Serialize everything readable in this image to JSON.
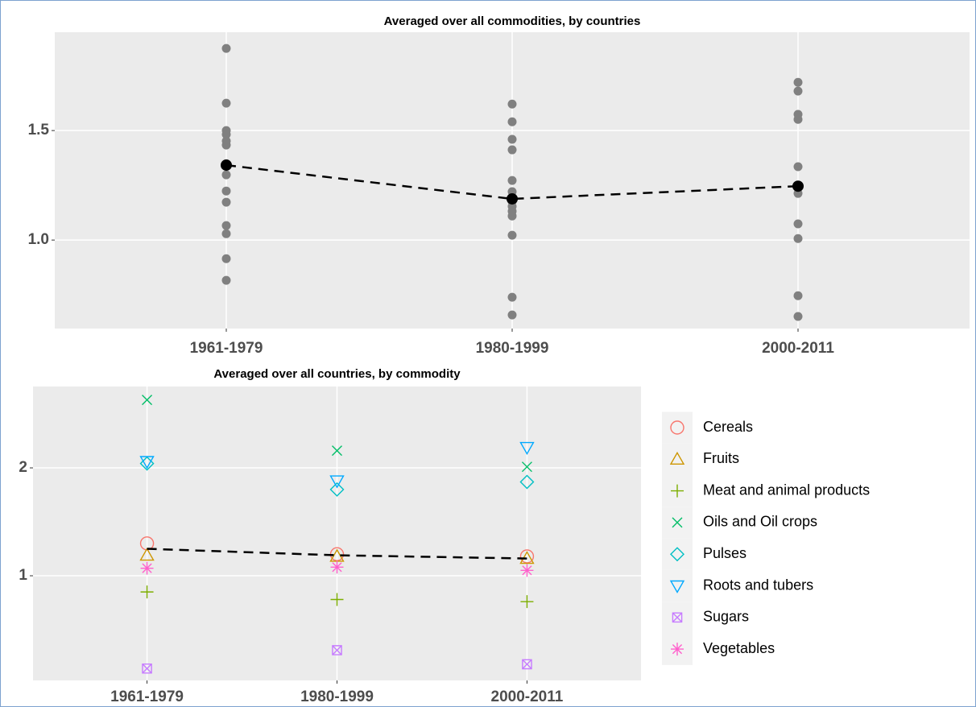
{
  "chart_data": [
    {
      "type": "strip",
      "title": "Averaged over all commodities, by countries",
      "categories": [
        "1961-1979",
        "1980-1999",
        "2000-2011"
      ],
      "values": [
        [
          1.875,
          1.625,
          1.5,
          1.482,
          1.452,
          1.434,
          1.349,
          1.298,
          1.224,
          1.173,
          1.066,
          1.029,
          0.915,
          0.816
        ],
        [
          1.621,
          1.54,
          1.46,
          1.412,
          1.272,
          1.221,
          1.176,
          1.154,
          1.132,
          1.11,
          1.022,
          0.739,
          0.658
        ],
        [
          1.72,
          1.68,
          1.574,
          1.551,
          1.335,
          1.25,
          1.213,
          1.074,
          1.007,
          0.746,
          0.651
        ]
      ],
      "color": "#808080",
      "mean_values": [
        1.342,
        1.188,
        1.246
      ],
      "mean_color": "#000000",
      "ylim": [
        0.596,
        1.949
      ],
      "yticks": [
        {
          "value": 1,
          "label": "1.0"
        },
        {
          "value": 1.5,
          "label": "1.5"
        }
      ],
      "grid": true
    },
    {
      "type": "point",
      "title": "Averaged over all countries, by commodity",
      "categories": [
        "1961-1979",
        "1980-1999",
        "2000-2011"
      ],
      "series": [
        {
          "name": "Cereals",
          "color": "#F8766D",
          "shape": "circle",
          "values": [
            1.3,
            1.2,
            1.18
          ]
        },
        {
          "name": "Fruits",
          "color": "#CD9600",
          "shape": "triangle",
          "values": [
            1.19,
            1.18,
            1.16
          ]
        },
        {
          "name": "Meat and animal products",
          "color": "#7CAE00",
          "shape": "plus",
          "values": [
            0.85,
            0.78,
            0.76
          ]
        },
        {
          "name": "Oils and Oil crops",
          "color": "#00BE67",
          "shape": "cross",
          "values": [
            2.63,
            2.16,
            2.01
          ]
        },
        {
          "name": "Pulses",
          "color": "#00BFC4",
          "shape": "diamond",
          "values": [
            2.04,
            1.8,
            1.87
          ]
        },
        {
          "name": "Roots and tubers",
          "color": "#00A9FF",
          "shape": "triangle-down",
          "values": [
            2.06,
            1.88,
            2.19
          ]
        },
        {
          "name": "Sugars",
          "color": "#C77CFF",
          "shape": "square-cross",
          "values": [
            0.14,
            0.31,
            0.18
          ]
        },
        {
          "name": "Vegetables",
          "color": "#FF61CC",
          "shape": "asterisk",
          "values": [
            1.07,
            1.08,
            1.05
          ]
        }
      ],
      "mean_values": [
        1.25,
        1.19,
        1.16
      ],
      "mean_color": "#000000",
      "ylim": [
        0.03,
        2.754
      ],
      "yticks": [
        1,
        2
      ],
      "grid": true,
      "legend": "right"
    }
  ]
}
